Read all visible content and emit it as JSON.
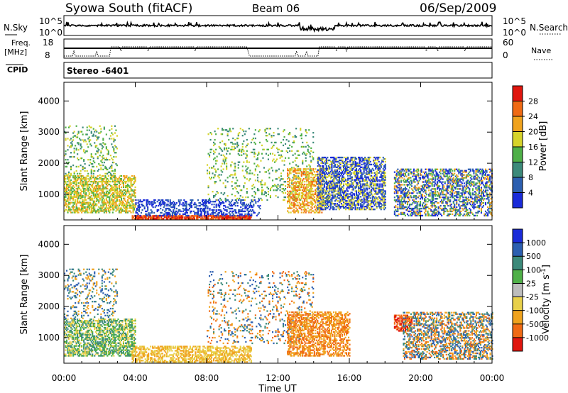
{
  "header": {
    "title": "Syowa South (fitACF)",
    "beam": "Beam 06",
    "date": "06/Sep/2009"
  },
  "top_panels": {
    "nsky_label": "N.Sky",
    "nsearch_label": "N.Search",
    "freq_label_line1": "Freq.",
    "freq_label_line2": "[MHz]",
    "nave_label": "Nave",
    "cpid_label": "CPID",
    "cpid_value": "Stereo -6401",
    "left_ticks_nsky": [
      "10^5",
      "10^0"
    ],
    "right_ticks_nsearch": [
      "10^5",
      "10^0"
    ],
    "left_ticks_freq": [
      "18",
      "8"
    ],
    "right_ticks_nave": [
      "60",
      "0"
    ]
  },
  "chart_data": [
    {
      "type": "heatmap",
      "panel": "power",
      "ylabel": "Slant Range [km]",
      "ylim": [
        180,
        4600
      ],
      "yticks": [
        "1000",
        "2000",
        "3000",
        "4000"
      ],
      "colorbar_label": "Power [dB]",
      "colorbar_ticks": [
        "4",
        "8",
        "12",
        "16",
        "20",
        "24",
        "28"
      ],
      "colorbar_colors": [
        "#1a2bd9",
        "#2c5fb0",
        "#3c8a7a",
        "#4fb048",
        "#d6d32a",
        "#f0a31e",
        "#f06a14",
        "#e0160e"
      ],
      "regions": [
        {
          "x": [
            0,
            4
          ],
          "y": [
            400,
            1600
          ],
          "levels": [
            3,
            4,
            5
          ],
          "density": 0.55
        },
        {
          "x": [
            0,
            3
          ],
          "y": [
            1600,
            3200
          ],
          "levels": [
            2,
            3,
            4
          ],
          "density": 0.15
        },
        {
          "x": [
            3.8,
            10.5
          ],
          "y": [
            200,
            300
          ],
          "levels": [
            6,
            7
          ],
          "density": 0.85
        },
        {
          "x": [
            4,
            11
          ],
          "y": [
            300,
            800
          ],
          "levels": [
            0,
            1
          ],
          "density": 0.35
        },
        {
          "x": [
            8,
            14
          ],
          "y": [
            800,
            3100
          ],
          "levels": [
            2,
            3,
            4
          ],
          "density": 0.12
        },
        {
          "x": [
            12.5,
            14.5
          ],
          "y": [
            400,
            1800
          ],
          "levels": [
            4,
            5,
            6
          ],
          "density": 0.45
        },
        {
          "x": [
            14.2,
            18
          ],
          "y": [
            500,
            2200
          ],
          "levels": [
            0,
            1,
            4
          ],
          "density": 0.55
        },
        {
          "x": [
            18.5,
            24
          ],
          "y": [
            300,
            1800
          ],
          "levels": [
            0,
            1,
            3,
            5
          ],
          "density": 0.45
        }
      ]
    },
    {
      "type": "heatmap",
      "panel": "velocity",
      "ylabel": "Slant Range [km]",
      "ylim": [
        180,
        4600
      ],
      "yticks": [
        "1000",
        "2000",
        "3000",
        "4000"
      ],
      "xlabel": "Time UT",
      "xticks": [
        "00:00",
        "04:00",
        "08:00",
        "12:00",
        "16:00",
        "20:00",
        "00:00"
      ],
      "colorbar_label": "Velocity [m s^-1]",
      "colorbar_ticks": [
        "1000",
        "500",
        "100",
        "25",
        "-25",
        "-100",
        "-500",
        "-1000"
      ],
      "colorbar_colors": [
        "#1a2bd9",
        "#2c5fb0",
        "#3c8a7a",
        "#4fb048",
        "#bdbdbd",
        "#e8d04a",
        "#f0a31e",
        "#f06a14",
        "#e0160e"
      ],
      "regions": [
        {
          "x": [
            0,
            4
          ],
          "y": [
            400,
            1600
          ],
          "levels": [
            2,
            3,
            5
          ],
          "density": 0.55
        },
        {
          "x": [
            0,
            3
          ],
          "y": [
            1600,
            3200
          ],
          "levels": [
            1,
            2,
            6
          ],
          "density": 0.15
        },
        {
          "x": [
            3.8,
            10.5
          ],
          "y": [
            200,
            700
          ],
          "levels": [
            5,
            6
          ],
          "density": 0.55
        },
        {
          "x": [
            8,
            14
          ],
          "y": [
            800,
            3100
          ],
          "levels": [
            1,
            2,
            6,
            7
          ],
          "density": 0.12
        },
        {
          "x": [
            12.5,
            16
          ],
          "y": [
            400,
            1800
          ],
          "levels": [
            6,
            7
          ],
          "density": 0.5
        },
        {
          "x": [
            18.5,
            19.5
          ],
          "y": [
            1200,
            1700
          ],
          "levels": [
            8,
            7
          ],
          "density": 0.6
        },
        {
          "x": [
            19,
            24
          ],
          "y": [
            300,
            1800
          ],
          "levels": [
            1,
            2,
            6,
            7
          ],
          "density": 0.45
        }
      ]
    }
  ]
}
